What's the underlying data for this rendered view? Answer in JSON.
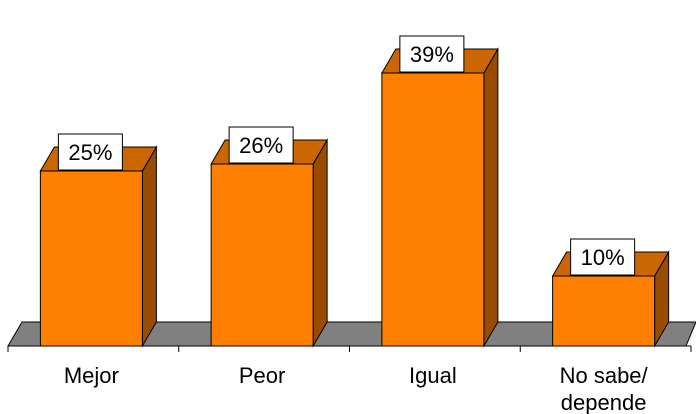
{
  "chart_data": {
    "type": "bar",
    "style": "3d",
    "categories": [
      "Mejor",
      "Peor",
      "Igual",
      "No sabe/\ndepende"
    ],
    "values": [
      25,
      26,
      39,
      10
    ],
    "data_labels": [
      "25%",
      "26%",
      "39%",
      "10%"
    ],
    "ylim": [
      0,
      43
    ],
    "grid": false,
    "legend": "none",
    "colors": {
      "bar_front": "#ff8000",
      "bar_top": "#cc6600",
      "bar_side": "#994c00",
      "floor": "#808080",
      "label_bg": "#ffffff",
      "stroke": "#000000"
    }
  }
}
